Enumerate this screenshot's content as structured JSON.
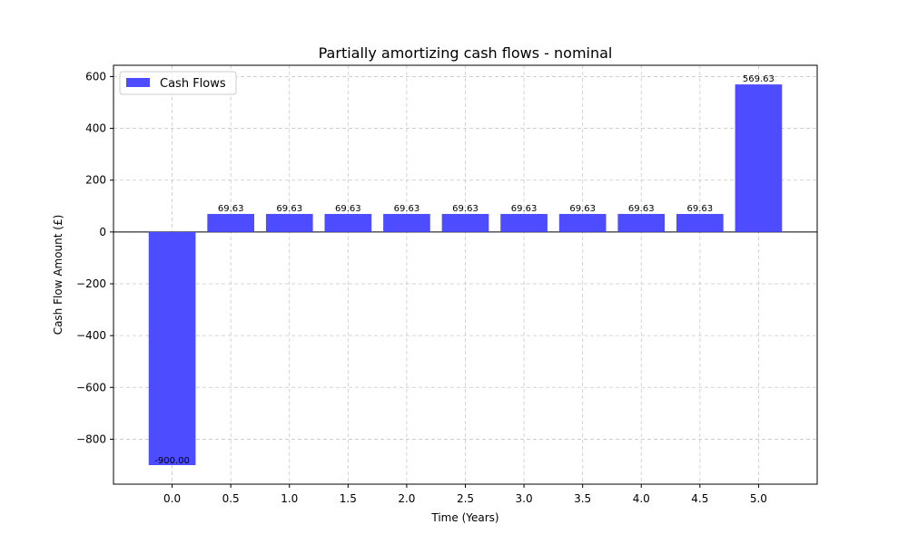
{
  "chart_data": {
    "type": "bar",
    "title": "Partially amortizing cash flows - nominal",
    "xlabel": "Time (Years)",
    "ylabel": "Cash Flow Amount (£)",
    "x": [
      0.0,
      0.5,
      1.0,
      1.5,
      2.0,
      2.5,
      3.0,
      3.5,
      4.0,
      4.5,
      5.0
    ],
    "x_tick_labels": [
      "0.0",
      "0.5",
      "1.0",
      "1.5",
      "2.0",
      "2.5",
      "3.0",
      "3.5",
      "4.0",
      "4.5",
      "5.0"
    ],
    "series": [
      {
        "name": "Cash Flows",
        "color": "#4d4dff",
        "values": [
          -900.0,
          69.63,
          69.63,
          69.63,
          69.63,
          69.63,
          69.63,
          69.63,
          69.63,
          69.63,
          569.63
        ],
        "value_labels": [
          "-900.00",
          "69.63",
          "69.63",
          "69.63",
          "69.63",
          "69.63",
          "69.63",
          "69.63",
          "69.63",
          "69.63",
          "569.63"
        ]
      }
    ],
    "xlim": [
      -0.5,
      5.5
    ],
    "ylim": [
      -973.5,
      643.5
    ],
    "y_ticks": [
      -800,
      -600,
      -400,
      -200,
      0,
      200,
      400,
      600
    ],
    "y_tick_labels": [
      "−800",
      "−600",
      "−400",
      "−200",
      "0",
      "200",
      "400",
      "600"
    ],
    "grid": true,
    "zero_line": true,
    "legend_position": "top-left"
  }
}
